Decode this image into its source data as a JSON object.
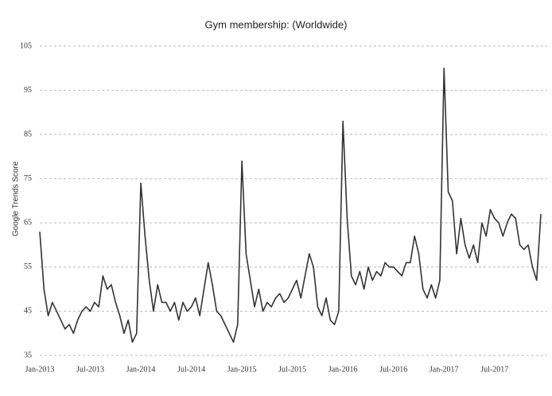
{
  "chart_data": {
    "type": "line",
    "title": "Gym membership: (Worldwide)",
    "y_label": "Google Trends Score",
    "categories": [
      "Jan-2013",
      null,
      null,
      null,
      null,
      null,
      null,
      null,
      null,
      null,
      null,
      null,
      "Jul-2013",
      null,
      null,
      null,
      null,
      null,
      null,
      null,
      null,
      null,
      null,
      null,
      "Jan-2014",
      null,
      null,
      null,
      null,
      null,
      null,
      null,
      null,
      null,
      null,
      null,
      "Jul-2014",
      null,
      null,
      null,
      null,
      null,
      null,
      null,
      null,
      null,
      null,
      null,
      "Jan-2015",
      null,
      null,
      null,
      null,
      null,
      null,
      null,
      null,
      null,
      null,
      null,
      "Jul-2015",
      null,
      null,
      null,
      null,
      null,
      null,
      null,
      null,
      null,
      null,
      null,
      "Jan-2016",
      null,
      null,
      null,
      null,
      null,
      null,
      null,
      null,
      null,
      null,
      null,
      "Jul-2016",
      null,
      null,
      null,
      null,
      null,
      null,
      null,
      null,
      null,
      null,
      null,
      "Jan-2017",
      null,
      null,
      null,
      null,
      null,
      null,
      null,
      null,
      null,
      null,
      null,
      "Jul-2017",
      null,
      null,
      null,
      null,
      null,
      null,
      null,
      null,
      null,
      null,
      null
    ],
    "values": [
      63,
      50,
      44,
      47,
      45,
      43,
      41,
      42,
      40,
      43,
      45,
      46,
      45,
      47,
      46,
      53,
      50,
      51,
      47,
      44,
      40,
      43,
      38,
      40,
      74,
      62,
      52,
      45,
      51,
      47,
      47,
      45,
      47,
      43,
      47,
      45,
      46,
      48,
      44,
      50,
      56,
      51,
      45,
      44,
      42,
      40,
      38,
      42,
      79,
      58,
      52,
      46,
      50,
      45,
      47,
      46,
      48,
      49,
      47,
      48,
      50,
      52,
      48,
      53,
      58,
      55,
      46,
      44,
      48,
      43,
      42,
      45,
      88,
      66,
      53,
      51,
      54,
      50,
      55,
      52,
      54,
      53,
      56,
      55,
      55,
      54,
      53,
      56,
      56,
      62,
      58,
      50,
      48,
      51,
      48,
      52,
      100,
      72,
      70,
      58,
      66,
      60,
      57,
      60,
      56,
      65,
      62,
      68,
      66,
      65,
      62,
      65,
      67,
      66,
      60,
      59,
      60,
      55,
      52,
      67
    ],
    "color": "#333333",
    "ylim": [
      35,
      105
    ],
    "yticks": [
      35,
      45,
      55,
      65,
      75,
      85,
      95,
      105
    ],
    "grid": true
  }
}
